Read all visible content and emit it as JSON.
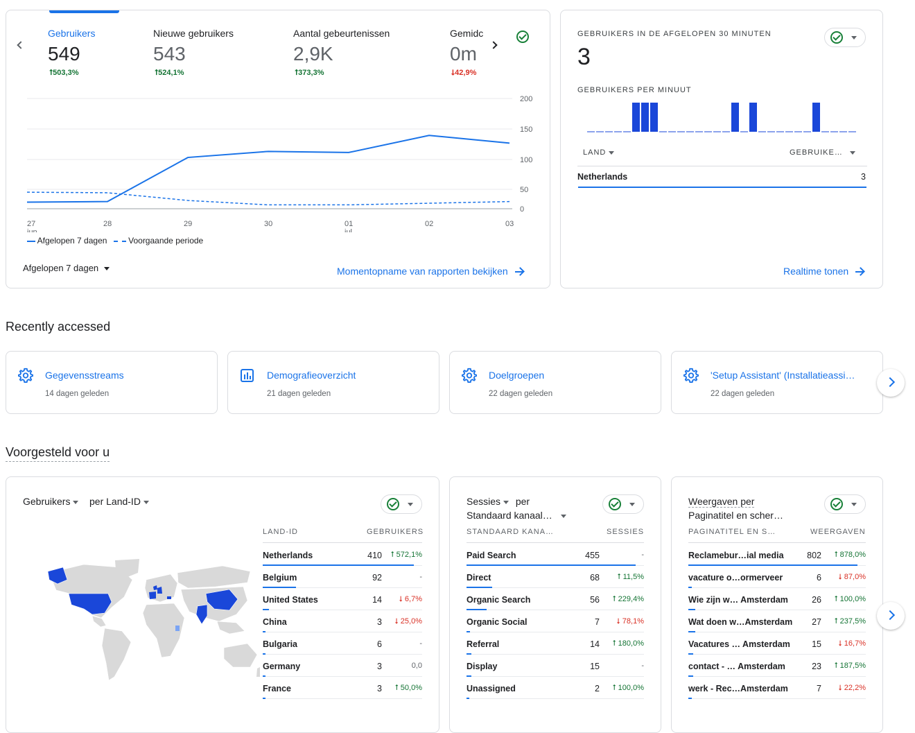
{
  "overview": {
    "metrics": [
      {
        "label": "Gebruikers",
        "value": "549",
        "change": "503,3%",
        "dir": "up"
      },
      {
        "label": "Nieuwe gebruikers",
        "value": "543",
        "change": "524,1%",
        "dir": "up"
      },
      {
        "label": "Aantal gebeurtenissen",
        "value": "2,9K",
        "change": "373,3%",
        "dir": "up"
      },
      {
        "label": "Gemidc",
        "value": "0m",
        "change": "42,9%",
        "dir": "down"
      }
    ],
    "x_ticks": [
      {
        "day": "27",
        "month": "jun"
      },
      {
        "day": "28",
        "month": ""
      },
      {
        "day": "29",
        "month": ""
      },
      {
        "day": "30",
        "month": ""
      },
      {
        "day": "01",
        "month": "jul"
      },
      {
        "day": "02",
        "month": ""
      },
      {
        "day": "03",
        "month": ""
      }
    ],
    "y_ticks": [
      "200",
      "150",
      "100",
      "50",
      "0"
    ],
    "legend_current": "Afgelopen 7 dagen",
    "legend_previous": "Voorgaande periode",
    "period_select": "Afgelopen 7 dagen",
    "snapshot_link": "Momentopname van rapporten bekijken"
  },
  "chart_data": {
    "type": "line",
    "x": [
      "27 jun",
      "28",
      "29",
      "30",
      "01 jul",
      "02",
      "03"
    ],
    "ylim": [
      0,
      200
    ],
    "series": [
      {
        "name": "Afgelopen 7 dagen",
        "values": [
          12,
          13,
          93,
          104,
          102,
          133,
          119
        ]
      },
      {
        "name": "Voorgaande periode",
        "values": [
          30,
          29,
          15,
          7,
          7,
          10,
          13
        ]
      }
    ]
  },
  "realtime": {
    "title": "GEBRUIKERS IN DE AFGELOPEN 30 MINUTEN",
    "value": "3",
    "per_minute_label": "GEBRUIKERS PER MINUUT",
    "per_minute": [
      0,
      0,
      0,
      0,
      0,
      1,
      1,
      1,
      0,
      0,
      0,
      0,
      0,
      0,
      0,
      0,
      1,
      0,
      1,
      0,
      0,
      0,
      0,
      0,
      0,
      1,
      0,
      0,
      0,
      0
    ],
    "col_country": "LAND",
    "col_users": "GEBRUIKE…",
    "rows": [
      {
        "name": "Netherlands",
        "value": "3"
      }
    ],
    "link": "Realtime tonen"
  },
  "recent": {
    "heading": "Recently accessed",
    "items": [
      {
        "title": "Gegevensstreams",
        "sub": "14 dagen geleden",
        "icon": "gear-icon"
      },
      {
        "title": "Demografieoverzicht",
        "sub": "21 dagen geleden",
        "icon": "bar-chart-icon"
      },
      {
        "title": "Doelgroepen",
        "sub": "22 dagen geleden",
        "icon": "gear-icon"
      },
      {
        "title": "'Setup Assistant' (Installatieassi…",
        "sub": "22 dagen geleden",
        "icon": "gear-icon"
      }
    ]
  },
  "suggested": {
    "heading": "Voorgesteld voor u",
    "country_card": {
      "metric": "Gebruikers",
      "dimension": "per Land-ID",
      "col1": "LAND-ID",
      "col2": "GEBRUIKERS",
      "rows": [
        {
          "name": "Netherlands",
          "value": "410",
          "change": "572,1%",
          "dir": "up",
          "share": 1.0
        },
        {
          "name": "Belgium",
          "value": "92",
          "change": "-",
          "dir": "none",
          "share": 0.22
        },
        {
          "name": "United States",
          "value": "14",
          "change": "6,7%",
          "dir": "down",
          "share": 0.04
        },
        {
          "name": "China",
          "value": "3",
          "change": "25,0%",
          "dir": "down",
          "share": 0.02
        },
        {
          "name": "Bulgaria",
          "value": "6",
          "change": "-",
          "dir": "none",
          "share": 0.02
        },
        {
          "name": "Germany",
          "value": "3",
          "change": "0,0",
          "dir": "none",
          "share": 0.02
        },
        {
          "name": "France",
          "value": "3",
          "change": "50,0%",
          "dir": "up",
          "share": 0.02
        }
      ]
    },
    "channel_card": {
      "metric": "Sessies",
      "per": "per",
      "dimension": "Standaard kanaal…",
      "col1": "STANDAARD KANA…",
      "col2": "SESSIES",
      "rows": [
        {
          "name": "Paid Search",
          "value": "455",
          "change": "-",
          "dir": "none",
          "share": 1.0
        },
        {
          "name": "Direct",
          "value": "68",
          "change": "11,5%",
          "dir": "up",
          "share": 0.15
        },
        {
          "name": "Organic Search",
          "value": "56",
          "change": "229,4%",
          "dir": "up",
          "share": 0.12
        },
        {
          "name": "Organic Social",
          "value": "7",
          "change": "78,1%",
          "dir": "down",
          "share": 0.02
        },
        {
          "name": "Referral",
          "value": "14",
          "change": "180,0%",
          "dir": "up",
          "share": 0.03
        },
        {
          "name": "Display",
          "value": "15",
          "change": "-",
          "dir": "none",
          "share": 0.03
        },
        {
          "name": "Unassigned",
          "value": "2",
          "change": "100,0%",
          "dir": "up",
          "share": 0.01
        }
      ]
    },
    "pages_card": {
      "metric": "Weergaven per",
      "dimension": "Paginatitel en scher…",
      "col1": "PAGINATITEL EN S…",
      "col2": "WEERGAVEN",
      "rows": [
        {
          "name": "Reclamebur…ial media",
          "value": "802",
          "change": "878,0%",
          "dir": "up",
          "share": 1.0
        },
        {
          "name": "vacature o…ormerveer",
          "value": "6",
          "change": "87,0%",
          "dir": "down",
          "share": 0.02
        },
        {
          "name": "Wie zijn w… Amsterdam",
          "value": "26",
          "change": "100,0%",
          "dir": "up",
          "share": 0.04
        },
        {
          "name": "Wat doen w…Amsterdam",
          "value": "27",
          "change": "237,5%",
          "dir": "up",
          "share": 0.04
        },
        {
          "name": "Vacatures … Amsterdam",
          "value": "15",
          "change": "16,7%",
          "dir": "down",
          "share": 0.03
        },
        {
          "name": "contact - … Amsterdam",
          "value": "23",
          "change": "187,5%",
          "dir": "up",
          "share": 0.03
        },
        {
          "name": "werk - Rec…Amsterdam",
          "value": "7",
          "change": "22,2%",
          "dir": "down",
          "share": 0.02
        }
      ]
    }
  },
  "colors": {
    "accent": "#1a73e8",
    "up": "#137333",
    "down": "#d93025",
    "map_land": "#d9d9d9",
    "map_high": "#1a47d9",
    "map_low": "#7ba4f4"
  }
}
